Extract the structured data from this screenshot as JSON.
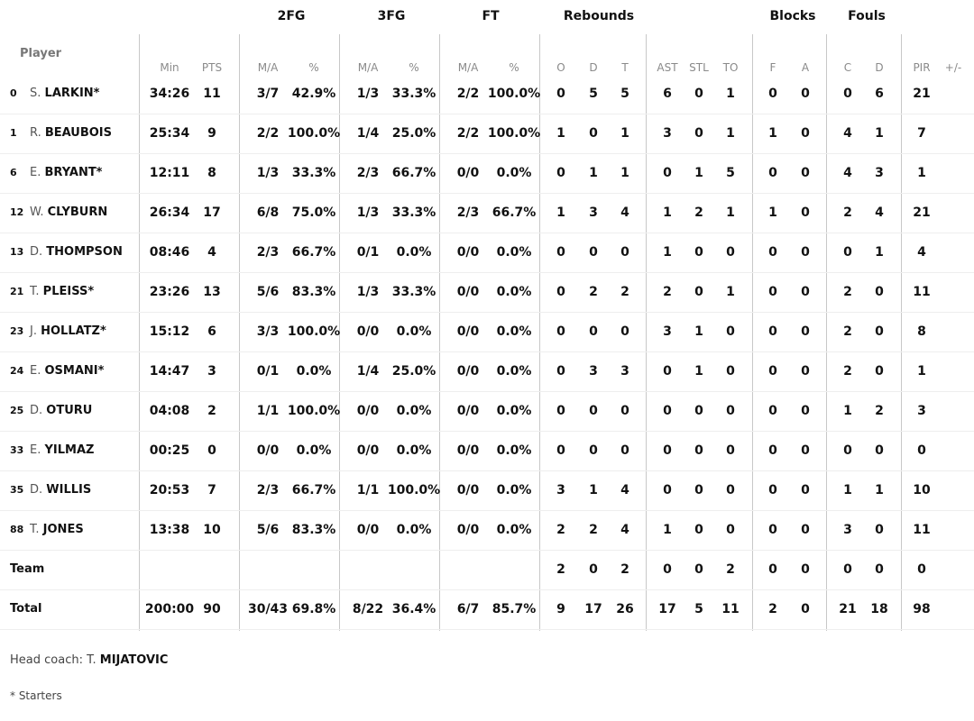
{
  "groups": [
    {
      "label": "2FG",
      "col": "fg2_pct"
    },
    {
      "label": "3FG",
      "col": "fg3_pct"
    },
    {
      "label": "FT",
      "col": "ft_pct"
    },
    {
      "label": "Rebounds",
      "col": "reb_d"
    },
    {
      "label": "Blocks",
      "col": "blk_f"
    },
    {
      "label": "Fouls",
      "col": "fl_c"
    }
  ],
  "player_header": "Player",
  "columns": [
    "Min",
    "PTS",
    "M/A",
    "%",
    "M/A",
    "%",
    "M/A",
    "%",
    "O",
    "D",
    "T",
    "AST",
    "STL",
    "TO",
    "F",
    "A",
    "C",
    "D",
    "PIR",
    "+/-"
  ],
  "players": [
    {
      "num": "0",
      "initial": "S.",
      "last": "LARKIN*",
      "stats": [
        "34:26",
        "11",
        "3/7",
        "42.9%",
        "1/3",
        "33.3%",
        "2/2",
        "100.0%",
        "0",
        "5",
        "5",
        "6",
        "0",
        "1",
        "0",
        "0",
        "0",
        "6",
        "21",
        ""
      ]
    },
    {
      "num": "1",
      "initial": "R.",
      "last": "BEAUBOIS",
      "stats": [
        "25:34",
        "9",
        "2/2",
        "100.0%",
        "1/4",
        "25.0%",
        "2/2",
        "100.0%",
        "1",
        "0",
        "1",
        "3",
        "0",
        "1",
        "1",
        "0",
        "4",
        "1",
        "7",
        ""
      ]
    },
    {
      "num": "6",
      "initial": "E.",
      "last": "BRYANT*",
      "stats": [
        "12:11",
        "8",
        "1/3",
        "33.3%",
        "2/3",
        "66.7%",
        "0/0",
        "0.0%",
        "0",
        "1",
        "1",
        "0",
        "1",
        "5",
        "0",
        "0",
        "4",
        "3",
        "1",
        ""
      ]
    },
    {
      "num": "12",
      "initial": "W.",
      "last": "CLYBURN",
      "stats": [
        "26:34",
        "17",
        "6/8",
        "75.0%",
        "1/3",
        "33.3%",
        "2/3",
        "66.7%",
        "1",
        "3",
        "4",
        "1",
        "2",
        "1",
        "1",
        "0",
        "2",
        "4",
        "21",
        ""
      ]
    },
    {
      "num": "13",
      "initial": "D.",
      "last": "THOMPSON",
      "stats": [
        "08:46",
        "4",
        "2/3",
        "66.7%",
        "0/1",
        "0.0%",
        "0/0",
        "0.0%",
        "0",
        "0",
        "0",
        "1",
        "0",
        "0",
        "0",
        "0",
        "0",
        "1",
        "4",
        ""
      ]
    },
    {
      "num": "21",
      "initial": "T.",
      "last": "PLEISS*",
      "stats": [
        "23:26",
        "13",
        "5/6",
        "83.3%",
        "1/3",
        "33.3%",
        "0/0",
        "0.0%",
        "0",
        "2",
        "2",
        "2",
        "0",
        "1",
        "0",
        "0",
        "2",
        "0",
        "11",
        ""
      ]
    },
    {
      "num": "23",
      "initial": "J.",
      "last": "HOLLATZ*",
      "stats": [
        "15:12",
        "6",
        "3/3",
        "100.0%",
        "0/0",
        "0.0%",
        "0/0",
        "0.0%",
        "0",
        "0",
        "0",
        "3",
        "1",
        "0",
        "0",
        "0",
        "2",
        "0",
        "8",
        ""
      ]
    },
    {
      "num": "24",
      "initial": "E.",
      "last": "OSMANI*",
      "stats": [
        "14:47",
        "3",
        "0/1",
        "0.0%",
        "1/4",
        "25.0%",
        "0/0",
        "0.0%",
        "0",
        "3",
        "3",
        "0",
        "1",
        "0",
        "0",
        "0",
        "2",
        "0",
        "1",
        ""
      ]
    },
    {
      "num": "25",
      "initial": "D.",
      "last": "OTURU",
      "stats": [
        "04:08",
        "2",
        "1/1",
        "100.0%",
        "0/0",
        "0.0%",
        "0/0",
        "0.0%",
        "0",
        "0",
        "0",
        "0",
        "0",
        "0",
        "0",
        "0",
        "1",
        "2",
        "3",
        ""
      ]
    },
    {
      "num": "33",
      "initial": "E.",
      "last": "YILMAZ",
      "stats": [
        "00:25",
        "0",
        "0/0",
        "0.0%",
        "0/0",
        "0.0%",
        "0/0",
        "0.0%",
        "0",
        "0",
        "0",
        "0",
        "0",
        "0",
        "0",
        "0",
        "0",
        "0",
        "0",
        ""
      ]
    },
    {
      "num": "35",
      "initial": "D.",
      "last": "WILLIS",
      "stats": [
        "20:53",
        "7",
        "2/3",
        "66.7%",
        "1/1",
        "100.0%",
        "0/0",
        "0.0%",
        "3",
        "1",
        "4",
        "0",
        "0",
        "0",
        "0",
        "0",
        "1",
        "1",
        "10",
        ""
      ]
    },
    {
      "num": "88",
      "initial": "T.",
      "last": "JONES",
      "stats": [
        "13:38",
        "10",
        "5/6",
        "83.3%",
        "0/0",
        "0.0%",
        "0/0",
        "0.0%",
        "2",
        "2",
        "4",
        "1",
        "0",
        "0",
        "0",
        "0",
        "3",
        "0",
        "11",
        ""
      ]
    }
  ],
  "team": {
    "label": "Team",
    "stats": [
      "",
      "",
      "",
      "",
      "",
      "",
      "",
      "",
      "2",
      "0",
      "2",
      "0",
      "0",
      "2",
      "0",
      "0",
      "0",
      "0",
      "0",
      ""
    ]
  },
  "total": {
    "label": "Total",
    "stats": [
      "200:00",
      "90",
      "30/43",
      "69.8%",
      "8/22",
      "36.4%",
      "6/7",
      "85.7%",
      "9",
      "17",
      "26",
      "17",
      "5",
      "11",
      "2",
      "0",
      "21",
      "18",
      "98",
      ""
    ]
  },
  "footer": {
    "coach_label": "Head coach: ",
    "coach_initial": "T.",
    "coach_last": "MIJATOVIC",
    "starters_note": "* Starters"
  }
}
